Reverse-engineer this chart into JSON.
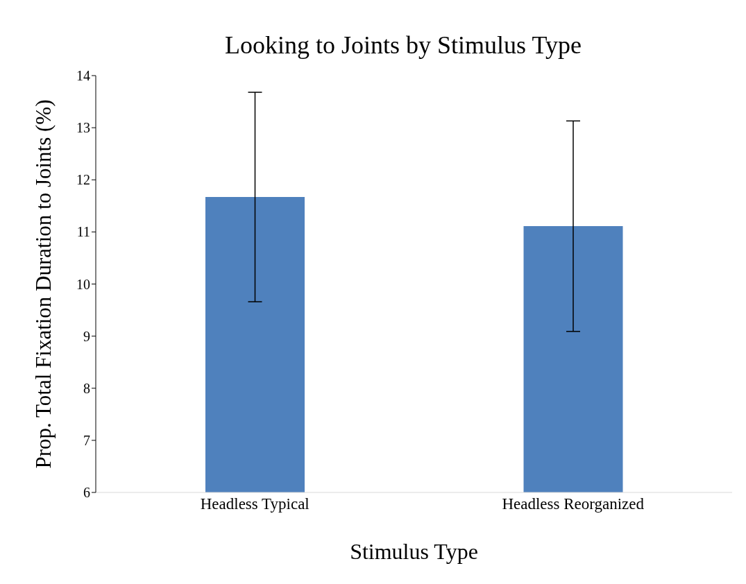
{
  "chart_data": {
    "type": "bar",
    "title": "Looking to Joints by Stimulus Type",
    "xlabel": "Stimulus Type",
    "ylabel": "Prop. Total Fixation Duration to Joints (%)",
    "categories": [
      "Headless Typical",
      "Headless Reorganized"
    ],
    "values": [
      11.67,
      11.11
    ],
    "errors": [
      2.01,
      2.02
    ],
    "color": "#4f81bd",
    "ylim": [
      6,
      14
    ],
    "yticks": [
      6,
      7,
      8,
      9,
      10,
      11,
      12,
      13,
      14
    ],
    "grid": false,
    "legend": false
  }
}
